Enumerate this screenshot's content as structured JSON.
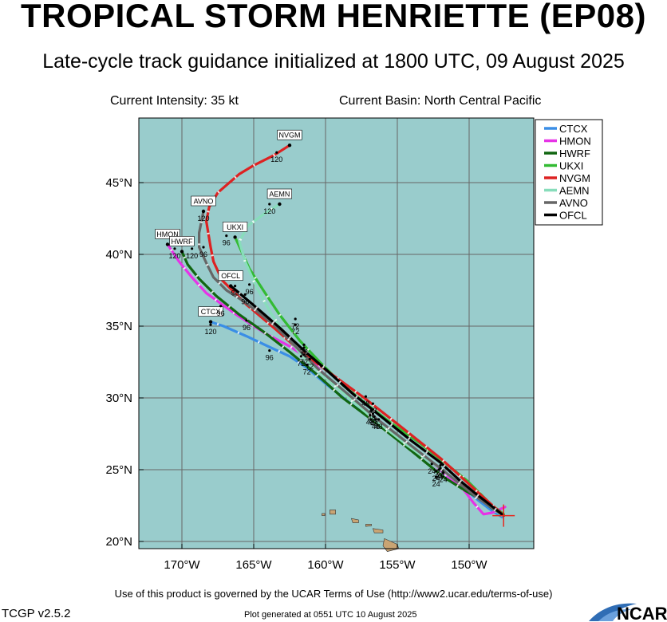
{
  "header": {
    "title": "TROPICAL STORM HENRIETTE (EP08)",
    "subtitle": "Late-cycle track guidance initialized at 1800 UTC, 09 August 2025",
    "current_intensity": "Current Intensity: 35 kt",
    "current_basin": "Current Basin: North Central Pacific"
  },
  "footer": {
    "terms": "Use of this product is governed by the UCAR Terms of Use (http://www2.ucar.edu/terms-of-use)",
    "version": "TCGP v2.5.2",
    "generated": "Plot generated at 0551 UTC   10 August 2025",
    "logo_text": "NCAR"
  },
  "colors": {
    "ocean": "#99cccc",
    "land": "#c9a473",
    "grid": "#666666",
    "storm_marker": "#e8281e"
  },
  "chart_data": {
    "type": "line",
    "x_tick_labels": [
      "170°W",
      "165°W",
      "160°W",
      "155°W",
      "150°W"
    ],
    "y_tick_labels": [
      "20°N",
      "25°N",
      "30°N",
      "35°N",
      "40°N",
      "45°N"
    ],
    "xlim": [
      -173,
      -145.5
    ],
    "ylim": [
      19.5,
      49.5
    ],
    "x_ticks": [
      -170,
      -165,
      -160,
      -155,
      -150
    ],
    "y_ticks": [
      20,
      25,
      30,
      35,
      40,
      45
    ],
    "grid": true,
    "legend_position": "top-right",
    "current_position": [
      -147.6,
      21.8
    ],
    "series": [
      {
        "name": "CTCX",
        "color": "#3a8ee6",
        "end_label": "CTCX",
        "end_hour": "120",
        "points": [
          [
            -147.7,
            21.7
          ],
          [
            -148.5,
            22.2
          ],
          [
            -149.4,
            22.9
          ],
          [
            -150.0,
            23.4
          ],
          [
            -151.0,
            24.3
          ],
          [
            -152.5,
            25.4
          ],
          [
            -154.5,
            26.9
          ],
          [
            -156.8,
            28.5
          ],
          [
            -158.5,
            29.8
          ],
          [
            -160.0,
            31.0
          ],
          [
            -161.3,
            32.1
          ],
          [
            -162.5,
            32.9
          ],
          [
            -163.8,
            33.5
          ],
          [
            -165.5,
            34.3
          ],
          [
            -167.1,
            35.0
          ],
          [
            -168.0,
            35.3
          ]
        ],
        "hour_marks": [
          {
            "h": "24",
            "at": [
              -152.1,
              24.5
            ]
          },
          {
            "h": "48",
            "at": [
              -156.5,
              28.0
            ]
          },
          {
            "h": "72",
            "at": [
              -161.3,
              31.8
            ]
          },
          {
            "h": "96",
            "at": [
              -163.9,
              32.8
            ]
          },
          {
            "h": "120",
            "at": [
              -168.0,
              34.6
            ]
          }
        ]
      },
      {
        "name": "HMON",
        "color": "#e633e6",
        "end_label": "HMON",
        "end_hour": "120",
        "points": [
          [
            -147.5,
            22.4
          ],
          [
            -148.4,
            22.0
          ],
          [
            -149.0,
            21.9
          ],
          [
            -149.7,
            22.7
          ],
          [
            -150.3,
            23.5
          ],
          [
            -152.0,
            25.0
          ],
          [
            -154.5,
            27.0
          ],
          [
            -157.0,
            29.0
          ],
          [
            -159.4,
            30.9
          ],
          [
            -161.0,
            32.6
          ],
          [
            -162.5,
            33.6
          ],
          [
            -164.2,
            34.5
          ],
          [
            -166.2,
            35.8
          ],
          [
            -168.3,
            37.3
          ],
          [
            -169.3,
            38.4
          ],
          [
            -170.2,
            39.5
          ],
          [
            -171.0,
            40.7
          ]
        ],
        "hour_marks": [
          {
            "h": "24",
            "at": [
              -152.6,
              24.9
            ]
          },
          {
            "h": "48",
            "at": [
              -156.9,
              28.3
            ]
          },
          {
            "h": "72",
            "at": [
              -161.1,
              32.2
            ]
          },
          {
            "h": "96",
            "at": [
              -165.5,
              34.9
            ]
          },
          {
            "h": "120",
            "at": [
              -169.3,
              39.9
            ]
          }
        ]
      },
      {
        "name": "HWRF",
        "color": "#116611",
        "end_label": "HWRF",
        "end_hour": "120",
        "points": [
          [
            -147.6,
            21.8
          ],
          [
            -148.4,
            22.3
          ],
          [
            -149.3,
            23.0
          ],
          [
            -150.2,
            23.5
          ],
          [
            -151.8,
            24.5
          ],
          [
            -154.0,
            26.3
          ],
          [
            -156.8,
            28.5
          ],
          [
            -158.8,
            30.0
          ],
          [
            -160.8,
            31.8
          ],
          [
            -162.5,
            33.2
          ],
          [
            -164.3,
            34.6
          ],
          [
            -166.0,
            35.8
          ],
          [
            -167.6,
            37.1
          ],
          [
            -168.8,
            38.3
          ],
          [
            -169.6,
            39.3
          ],
          [
            -170.0,
            40.2
          ]
        ],
        "hour_marks": [
          {
            "h": "24",
            "at": [
              -152.3,
              24.0
            ]
          },
          {
            "h": "48",
            "at": [
              -156.3,
              28.0
            ]
          },
          {
            "h": "72",
            "at": [
              -161.5,
              32.5
            ]
          },
          {
            "h": "96",
            "at": [
              -167.3,
              35.9
            ]
          },
          {
            "h": "120",
            "at": [
              -170.5,
              39.9
            ]
          }
        ]
      },
      {
        "name": "UKXI",
        "color": "#33bb33",
        "end_label": "UKXI",
        "end_hour": "96",
        "points": [
          [
            -147.6,
            21.9
          ],
          [
            -148.5,
            22.6
          ],
          [
            -149.4,
            23.5
          ],
          [
            -150.1,
            24.2
          ],
          [
            -151.6,
            25.4
          ],
          [
            -153.5,
            26.9
          ],
          [
            -155.5,
            28.3
          ],
          [
            -157.2,
            29.6
          ],
          [
            -158.8,
            30.9
          ],
          [
            -160.4,
            32.5
          ],
          [
            -161.8,
            34.0
          ],
          [
            -163.2,
            35.8
          ],
          [
            -164.2,
            37.3
          ],
          [
            -165.3,
            39.0
          ],
          [
            -166.3,
            41.2
          ]
        ],
        "hour_marks": [
          {
            "h": "24",
            "at": [
              -152.0,
              24.8
            ]
          },
          {
            "h": "48",
            "at": [
              -156.8,
              28.6
            ]
          },
          {
            "h": "72",
            "at": [
              -162.1,
              34.6
            ]
          },
          {
            "h": "96",
            "at": [
              -166.9,
              40.8
            ]
          }
        ]
      },
      {
        "name": "NVGM",
        "color": "#dd2222",
        "end_label": "NVGM",
        "end_hour": "120",
        "points": [
          [
            -147.8,
            22.0
          ],
          [
            -148.7,
            22.8
          ],
          [
            -149.8,
            23.8
          ],
          [
            -151.0,
            24.9
          ],
          [
            -152.0,
            25.8
          ],
          [
            -154.5,
            27.8
          ],
          [
            -157.3,
            30.0
          ],
          [
            -159.5,
            31.6
          ],
          [
            -161.8,
            33.3
          ],
          [
            -163.5,
            34.8
          ],
          [
            -165.5,
            36.5
          ],
          [
            -167.2,
            38.2
          ],
          [
            -167.8,
            39.5
          ],
          [
            -168.0,
            40.5
          ],
          [
            -168.3,
            42.3
          ],
          [
            -168.1,
            43.3
          ],
          [
            -167.5,
            44.3
          ],
          [
            -166.0,
            45.6
          ],
          [
            -165.0,
            46.2
          ],
          [
            -163.6,
            46.9
          ],
          [
            -162.5,
            47.6
          ]
        ],
        "hour_marks": [
          {
            "h": "24",
            "at": [
              -151.8,
              24.3
            ]
          },
          {
            "h": "48",
            "at": [
              -156.7,
              29.1
            ]
          },
          {
            "h": "72",
            "at": [
              -162.1,
              35.0
            ]
          },
          {
            "h": "96",
            "at": [
              -166.3,
              37.3
            ]
          },
          {
            "h": "120",
            "at": [
              -163.4,
              46.6
            ]
          }
        ]
      },
      {
        "name": "AEMN",
        "color": "#88ddbb",
        "end_label": "AEMN",
        "end_hour": "120",
        "points": [
          [
            -147.7,
            21.8
          ],
          [
            -148.6,
            22.5
          ],
          [
            -149.6,
            23.3
          ],
          [
            -150.6,
            24.0
          ],
          [
            -152.2,
            25.2
          ],
          [
            -154.3,
            26.7
          ],
          [
            -156.6,
            28.5
          ],
          [
            -158.5,
            30.1
          ],
          [
            -160.2,
            31.6
          ],
          [
            -161.6,
            32.9
          ],
          [
            -162.7,
            34.3
          ],
          [
            -163.8,
            35.9
          ],
          [
            -164.8,
            37.7
          ],
          [
            -165.6,
            39.5
          ],
          [
            -166.0,
            40.9
          ],
          [
            -165.4,
            42.0
          ],
          [
            -164.3,
            42.8
          ],
          [
            -163.2,
            43.5
          ]
        ],
        "hour_marks": [
          {
            "h": "24",
            "at": [
              -152.0,
              24.6
            ]
          },
          {
            "h": "48",
            "at": [
              -156.6,
              28.2
            ]
          },
          {
            "h": "72",
            "at": [
              -161.7,
              32.4
            ]
          },
          {
            "h": "96",
            "at": [
              -165.3,
              37.4
            ]
          },
          {
            "h": "120",
            "at": [
              -163.9,
              43.0
            ]
          }
        ]
      },
      {
        "name": "AVNO",
        "color": "#666666",
        "end_label": "AVNO",
        "end_hour": "120",
        "points": [
          [
            -147.6,
            21.8
          ],
          [
            -148.5,
            22.4
          ],
          [
            -149.5,
            23.1
          ],
          [
            -150.5,
            23.9
          ],
          [
            -152.0,
            25.1
          ],
          [
            -154.2,
            26.8
          ],
          [
            -156.5,
            28.6
          ],
          [
            -158.6,
            30.4
          ],
          [
            -160.5,
            32.0
          ],
          [
            -162.0,
            33.5
          ],
          [
            -163.5,
            35.0
          ],
          [
            -164.6,
            35.9
          ],
          [
            -165.8,
            36.8
          ],
          [
            -166.9,
            37.5
          ],
          [
            -167.8,
            38.4
          ],
          [
            -168.3,
            39.4
          ],
          [
            -168.8,
            40.5
          ],
          [
            -168.8,
            41.5
          ],
          [
            -168.5,
            43.0
          ]
        ],
        "hour_marks": [
          {
            "h": "24",
            "at": [
              -152.3,
              24.4
            ]
          },
          {
            "h": "48",
            "at": [
              -156.7,
              28.4
            ]
          },
          {
            "h": "72",
            "at": [
              -161.5,
              33.2
            ]
          },
          {
            "h": "96",
            "at": [
              -168.5,
              40.0
            ]
          },
          {
            "h": "120",
            "at": [
              -168.5,
              42.5
            ]
          }
        ]
      },
      {
        "name": "OFCL",
        "color": "#000000",
        "end_label": "OFCL",
        "end_hour": "96",
        "points": [
          [
            -147.6,
            21.8
          ],
          [
            -148.6,
            22.6
          ],
          [
            -149.5,
            23.3
          ],
          [
            -150.6,
            24.2
          ],
          [
            -152.0,
            25.5
          ],
          [
            -154.0,
            27.0
          ],
          [
            -156.0,
            28.6
          ],
          [
            -158.0,
            30.2
          ],
          [
            -160.0,
            32.0
          ],
          [
            -161.5,
            33.3
          ],
          [
            -163.2,
            34.9
          ],
          [
            -164.7,
            36.2
          ],
          [
            -166.0,
            37.3
          ],
          [
            -166.6,
            37.8
          ]
        ],
        "hour_marks": [
          {
            "h": "24",
            "at": [
              -152.0,
              24.6
            ]
          },
          {
            "h": "48",
            "at": [
              -157.2,
              29.6
            ]
          },
          {
            "h": "72",
            "at": [
              -161.5,
              33.0
            ]
          },
          {
            "h": "96",
            "at": [
              -165.6,
              36.7
            ]
          }
        ]
      }
    ],
    "islands": [
      [
        [
          -155.9,
          20.2
        ],
        [
          -155.0,
          19.8
        ],
        [
          -154.9,
          19.5
        ],
        [
          -155.7,
          19.3
        ],
        [
          -156.0,
          19.7
        ]
      ],
      [
        [
          -156.7,
          20.9
        ],
        [
          -156.0,
          20.8
        ],
        [
          -156.0,
          20.6
        ],
        [
          -156.6,
          20.6
        ]
      ],
      [
        [
          -157.2,
          21.2
        ],
        [
          -156.8,
          21.2
        ],
        [
          -156.8,
          21.1
        ],
        [
          -157.2,
          21.05
        ]
      ],
      [
        [
          -158.2,
          21.6
        ],
        [
          -157.7,
          21.5
        ],
        [
          -157.7,
          21.3
        ],
        [
          -158.1,
          21.3
        ]
      ],
      [
        [
          -159.7,
          22.2
        ],
        [
          -159.3,
          22.2
        ],
        [
          -159.3,
          21.9
        ],
        [
          -159.7,
          21.9
        ]
      ],
      [
        [
          -160.25,
          21.95
        ],
        [
          -160.05,
          21.95
        ],
        [
          -160.05,
          21.8
        ],
        [
          -160.25,
          21.8
        ]
      ]
    ]
  }
}
